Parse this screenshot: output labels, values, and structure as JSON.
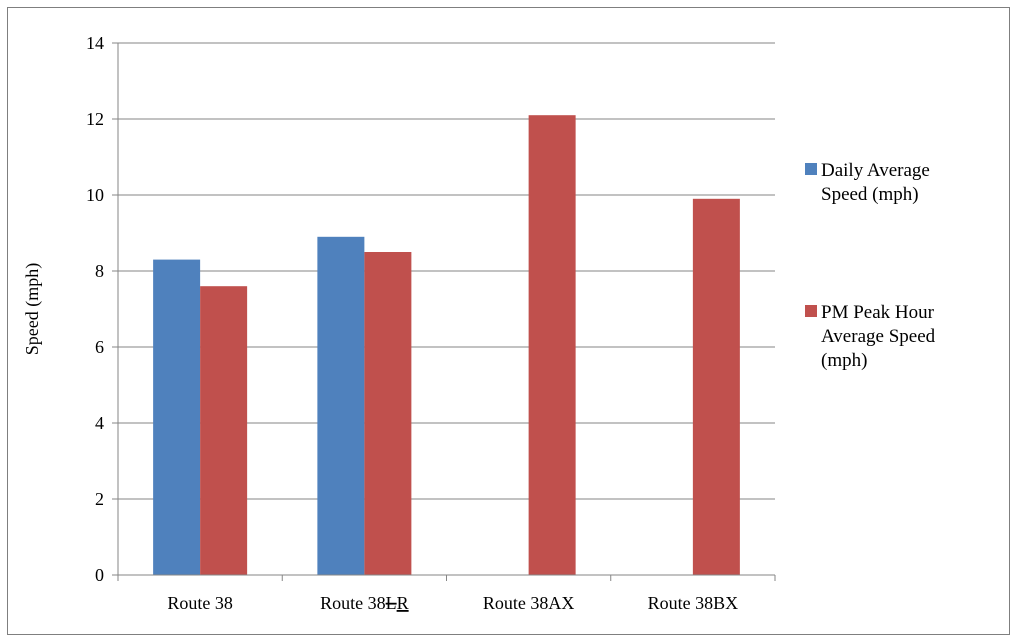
{
  "chart_data": {
    "type": "bar",
    "categories": [
      "Route 38",
      "Route 38LR",
      "Route 38AX",
      "Route 38BX"
    ],
    "category_labels": [
      {
        "parts": [
          {
            "text": "Route 38",
            "style": "normal"
          }
        ]
      },
      {
        "parts": [
          {
            "text": "Route 38",
            "style": "normal"
          },
          {
            "text": "L",
            "style": "strike"
          },
          {
            "text": "R",
            "style": "underline"
          }
        ]
      },
      {
        "parts": [
          {
            "text": "Route 38AX",
            "style": "normal"
          }
        ]
      },
      {
        "parts": [
          {
            "text": "Route 38BX",
            "style": "normal"
          }
        ]
      }
    ],
    "series": [
      {
        "name": "Daily Average Speed (mph)",
        "legend_lines": [
          "Daily Average",
          "Speed (mph)"
        ],
        "color": "#4f81bd",
        "values": [
          8.3,
          8.9,
          null,
          null
        ]
      },
      {
        "name": "PM Peak Hour Average Speed (mph)",
        "legend_lines": [
          "PM Peak Hour",
          "Average Speed",
          "(mph)"
        ],
        "color": "#c0504d",
        "values": [
          7.6,
          8.5,
          12.1,
          9.9
        ]
      }
    ],
    "ylabel": "Speed (mph)",
    "xlabel": "",
    "ylim": [
      0,
      14
    ],
    "yticks": [
      0,
      2,
      4,
      6,
      8,
      10,
      12,
      14
    ],
    "grid": true,
    "legend_position": "right"
  }
}
